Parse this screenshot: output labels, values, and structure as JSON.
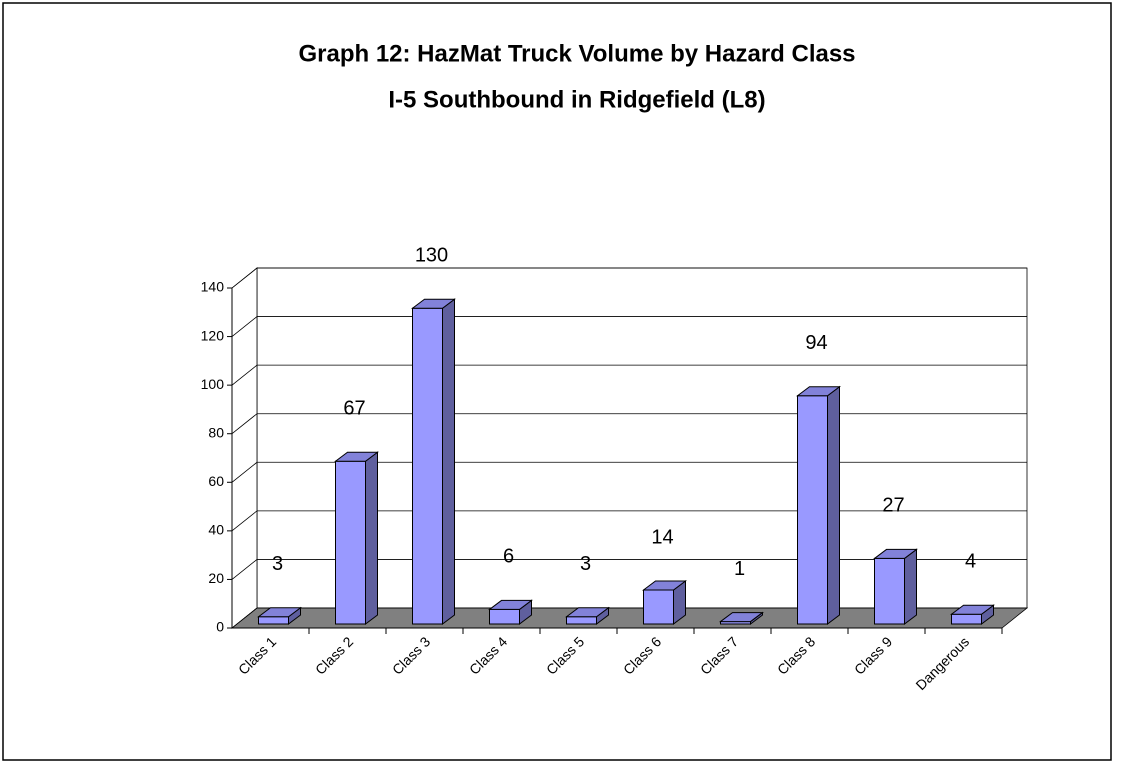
{
  "chart_data": {
    "type": "bar3d",
    "title": "Graph 12: HazMat Truck Volume by Hazard Class",
    "subtitle": "I-5 Southbound in Ridgefield (L8)",
    "categories": [
      "Class 1",
      "Class 2",
      "Class 3",
      "Class 4",
      "Class 5",
      "Class 6",
      "Class 7",
      "Class 8",
      "Class 9",
      "Dangerous"
    ],
    "values": [
      3,
      67,
      130,
      6,
      3,
      14,
      1,
      94,
      27,
      4
    ],
    "color": "#9999ff",
    "ylim": [
      0,
      140
    ],
    "yticks": [
      0,
      20,
      40,
      60,
      80,
      100,
      120,
      140
    ],
    "grid": true
  }
}
